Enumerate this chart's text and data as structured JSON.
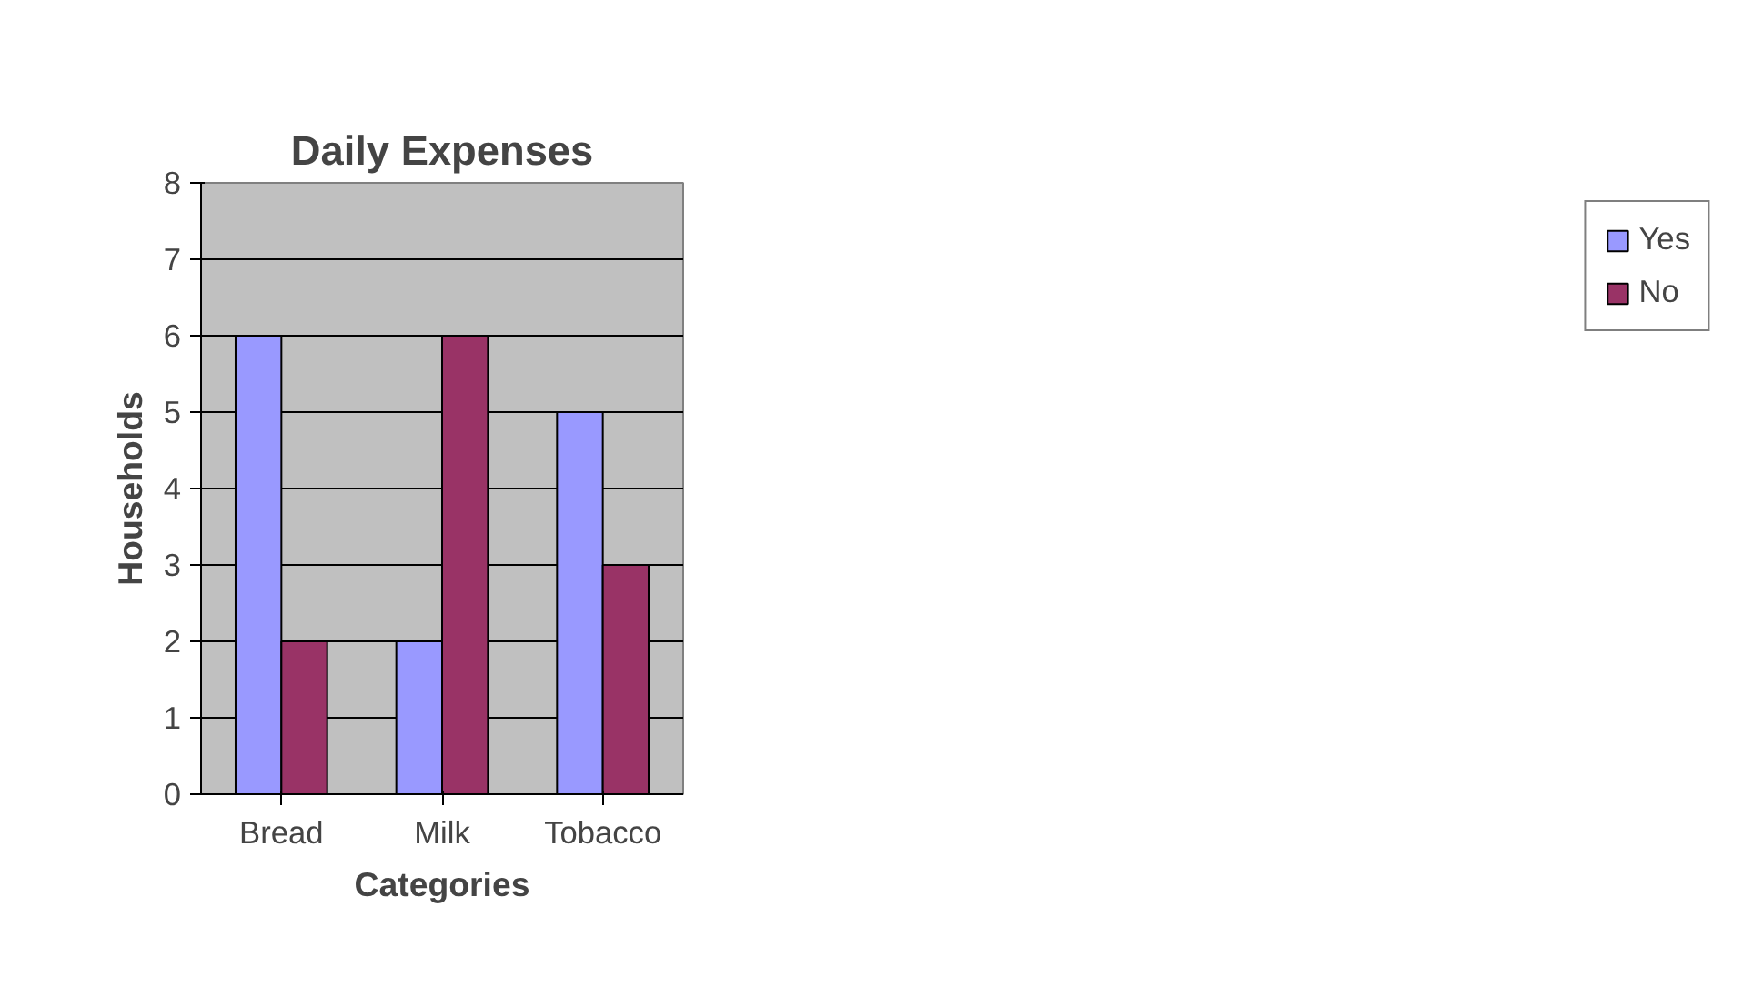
{
  "chart_data": {
    "type": "bar",
    "title": "Daily Expenses",
    "xlabel": "Categories",
    "ylabel": "Households",
    "categories": [
      "Bread",
      "Milk",
      "Tobacco"
    ],
    "series": [
      {
        "name": "Yes",
        "color": "#9999ff",
        "values": [
          6,
          2,
          5
        ]
      },
      {
        "name": "No",
        "color": "#993366",
        "values": [
          2,
          6,
          3
        ]
      }
    ],
    "ylim": [
      0,
      8
    ],
    "yticks": [
      0,
      1,
      2,
      3,
      4,
      5,
      6,
      7,
      8
    ],
    "grid": "y",
    "legend": "right"
  }
}
